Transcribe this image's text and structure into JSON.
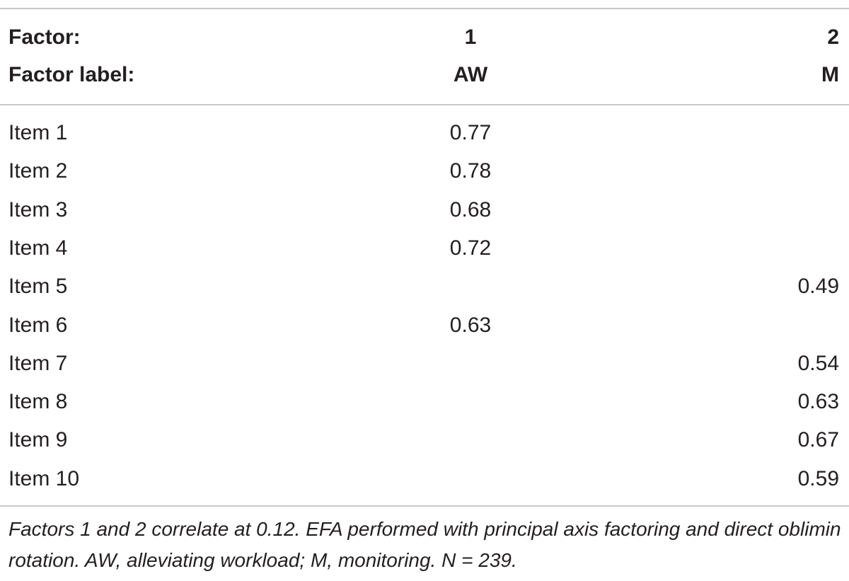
{
  "header": {
    "row1": {
      "label": "Factor:",
      "col1": "1",
      "col2": "2"
    },
    "row2": {
      "label": "Factor label:",
      "col1": "AW",
      "col2": "M"
    }
  },
  "rows": [
    {
      "item": "Item 1",
      "f1": "0.77",
      "f2": ""
    },
    {
      "item": "Item 2",
      "f1": "0.78",
      "f2": ""
    },
    {
      "item": "Item 3",
      "f1": "0.68",
      "f2": ""
    },
    {
      "item": "Item 4",
      "f1": "0.72",
      "f2": ""
    },
    {
      "item": "Item 5",
      "f1": "",
      "f2": "0.49"
    },
    {
      "item": "Item 6",
      "f1": "0.63",
      "f2": ""
    },
    {
      "item": "Item 7",
      "f1": "",
      "f2": "0.54"
    },
    {
      "item": "Item 8",
      "f1": "",
      "f2": "0.63"
    },
    {
      "item": "Item 9",
      "f1": "",
      "f2": "0.67"
    },
    {
      "item": "Item 10",
      "f1": "",
      "f2": "0.59"
    }
  ],
  "footnote": "Factors 1 and 2 correlate at 0.12. EFA performed with principal axis factoring and direct oblimin rotation. AW, alleviating workload; M, monitoring. N = 239."
}
